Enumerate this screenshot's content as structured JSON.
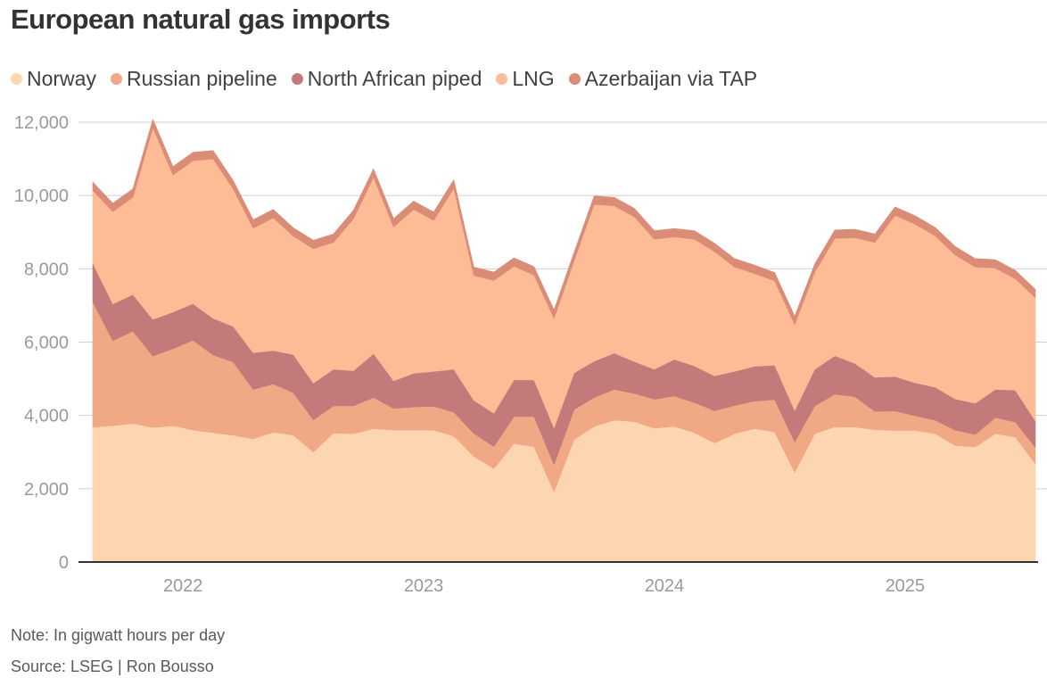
{
  "title": "European natural gas imports",
  "note": "Note: In gigwatt hours per day",
  "source": "Source: LSEG | Ron Bousso",
  "colors": {
    "norway": "#fdd5b1",
    "russian_pipeline": "#f0a885",
    "north_african_piped": "#c47a7a",
    "lng": "#fdbb96",
    "azerbaijan": "#db8c76",
    "gridline": "#d0d0d0",
    "axis": "#333333"
  },
  "chart_data": {
    "type": "area",
    "stacked": true,
    "title": "European natural gas imports",
    "ylim": [
      0,
      12000
    ],
    "yticks": [
      "0",
      "2,000",
      "4,000",
      "6,000",
      "8,000",
      "10,000",
      "12,000"
    ],
    "ytick_values": [
      0,
      2000,
      4000,
      6000,
      8000,
      10000,
      12000
    ],
    "xticks": [
      "2022",
      "2023",
      "2024",
      "2025"
    ],
    "xtick_values": [
      4.5,
      16.5,
      28.5,
      40.5
    ],
    "x_start": "2021-10",
    "x_end": "2025-09",
    "legend_position": "top-left",
    "grid": true,
    "series": [
      {
        "name": "Norway",
        "values": [
          3680,
          3720,
          3780,
          3670,
          3720,
          3600,
          3530,
          3460,
          3360,
          3540,
          3460,
          3000,
          3520,
          3500,
          3640,
          3600,
          3600,
          3600,
          3440,
          2880,
          2550,
          3230,
          3150,
          1920,
          3340,
          3700,
          3870,
          3830,
          3650,
          3700,
          3530,
          3250,
          3500,
          3640,
          3550,
          2450,
          3500,
          3690,
          3680,
          3610,
          3590,
          3590,
          3500,
          3180,
          3140,
          3500,
          3410,
          2680
        ]
      },
      {
        "name": "Russian pipeline",
        "values": [
          3420,
          2320,
          2520,
          1950,
          2100,
          2450,
          2120,
          2000,
          1350,
          1320,
          1160,
          880,
          740,
          760,
          850,
          590,
          630,
          650,
          650,
          630,
          600,
          740,
          820,
          740,
          820,
          790,
          840,
          770,
          790,
          830,
          820,
          880,
          770,
          750,
          880,
          830,
          760,
          890,
          830,
          500,
          530,
          400,
          370,
          420,
          340,
          440,
          410,
          450
        ]
      },
      {
        "name": "North African piped",
        "values": [
          1060,
          1000,
          1000,
          1000,
          1000,
          1000,
          1000,
          970,
          1000,
          910,
          1040,
          1000,
          1000,
          960,
          1200,
          750,
          920,
          950,
          1170,
          900,
          910,
          1000,
          1000,
          1000,
          1000,
          990,
          990,
          870,
          820,
          1000,
          1000,
          950,
          930,
          950,
          940,
          850,
          1000,
          1050,
          910,
          930,
          940,
          900,
          900,
          850,
          850,
          770,
          870,
          720
        ]
      },
      {
        "name": "LNG",
        "values": [
          1980,
          2520,
          2650,
          5230,
          3740,
          3900,
          4350,
          3750,
          3400,
          3620,
          3230,
          3670,
          3460,
          4150,
          4810,
          4200,
          4470,
          4120,
          4940,
          3410,
          3620,
          3100,
          2860,
          2990,
          3060,
          4280,
          4020,
          3950,
          3550,
          3340,
          3460,
          3390,
          2850,
          2530,
          2300,
          2350,
          2650,
          3200,
          3430,
          3680,
          4400,
          4330,
          4130,
          3930,
          3720,
          3310,
          3040,
          3360
        ]
      },
      {
        "name": "Azerbaijan via TAP",
        "values": [
          230,
          230,
          230,
          230,
          230,
          230,
          230,
          230,
          230,
          230,
          230,
          230,
          230,
          230,
          230,
          230,
          230,
          230,
          230,
          230,
          230,
          230,
          230,
          230,
          230,
          230,
          230,
          230,
          230,
          230,
          230,
          230,
          230,
          230,
          230,
          230,
          230,
          230,
          230,
          230,
          230,
          230,
          230,
          230,
          230,
          230,
          230,
          230
        ]
      }
    ]
  }
}
